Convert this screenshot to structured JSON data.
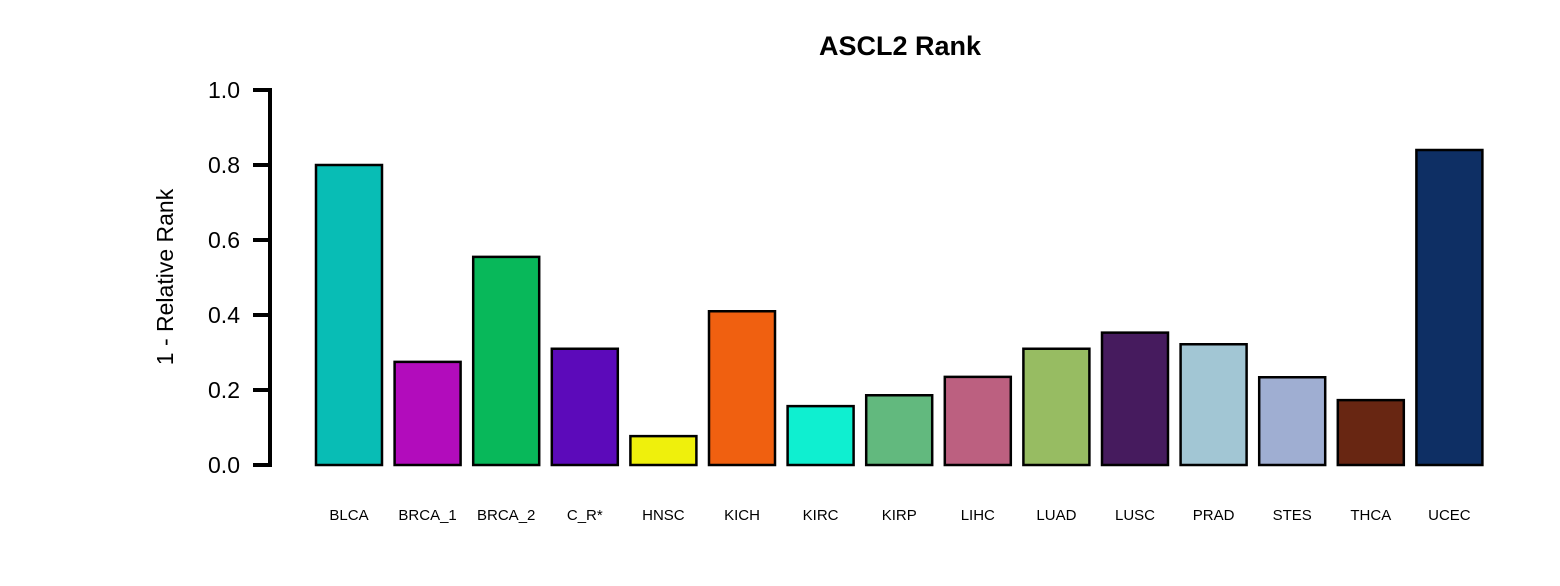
{
  "chart_data": {
    "type": "bar",
    "title": "ASCL2 Rank",
    "xlabel": "",
    "ylabel": "1 - Relative Rank",
    "ylim": [
      0,
      1
    ],
    "yticks": [
      "0.0",
      "0.2",
      "0.4",
      "0.6",
      "0.8",
      "1.0"
    ],
    "grid": false,
    "legend": "none",
    "categories": [
      "BLCA",
      "BRCA_1",
      "BRCA_2",
      "C_R*",
      "HNSC",
      "KICH",
      "KIRC",
      "KIRP",
      "LIHC",
      "LUAD",
      "LUSC",
      "PRAD",
      "STES",
      "THCA",
      "UCEC"
    ],
    "values": [
      0.8,
      0.275,
      0.555,
      0.31,
      0.077,
      0.41,
      0.157,
      0.186,
      0.235,
      0.31,
      0.353,
      0.322,
      0.234,
      0.173,
      0.84
    ],
    "colors": [
      "#08BDB5",
      "#B20CBC",
      "#08B85A",
      "#5C0ABA",
      "#EFF00C",
      "#F06010",
      "#0FEFD0",
      "#62B97E",
      "#BC6080",
      "#97BC62",
      "#461B5E",
      "#A2C6D4",
      "#9FAED2",
      "#682612",
      "#0E2F64"
    ]
  }
}
